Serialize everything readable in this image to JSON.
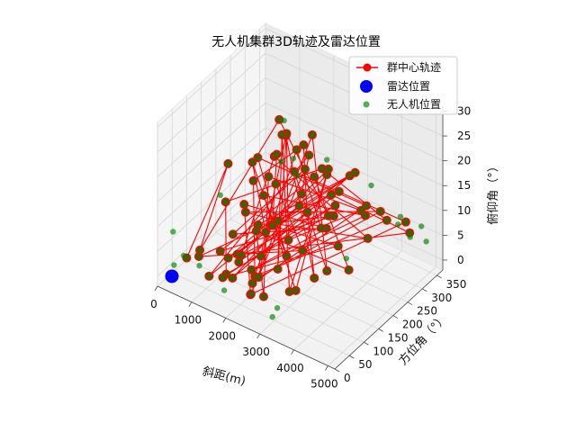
{
  "chart_data": {
    "type": "scatter",
    "projection": "3d",
    "title": "无人机集群3D轨迹及雷达位置",
    "xlabel": "斜距(m)",
    "ylabel": "方位角（°）",
    "zlabel": "俯仰角（°）",
    "xlim": [
      0,
      5200
    ],
    "ylim": [
      0,
      370
    ],
    "zlim": [
      -2,
      31
    ],
    "xticks": [
      "0",
      "1000",
      "2000",
      "3000",
      "4000",
      "5000"
    ],
    "yticks": [
      "0",
      "50",
      "100",
      "150",
      "200",
      "250",
      "300",
      "350"
    ],
    "zticks": [
      "0",
      "5",
      "10",
      "15",
      "20",
      "25",
      "30"
    ],
    "grid": true,
    "legend_position": "top-right",
    "legend": [
      {
        "label": "群中心轨迹",
        "color": "#ff0000",
        "marker": "line-circle"
      },
      {
        "label": "雷达位置",
        "color": "#0000ff",
        "marker": "circle"
      },
      {
        "label": "无人机位置",
        "color": "#008000",
        "marker": "circle"
      }
    ],
    "series": [
      {
        "name": "群中心轨迹",
        "color": "#ff0000",
        "points": [
          [
            600,
            30,
            4
          ],
          [
            1300,
            90,
            22
          ],
          [
            900,
            40,
            6
          ],
          [
            2200,
            160,
            30
          ],
          [
            3300,
            200,
            12
          ],
          [
            1500,
            60,
            2
          ],
          [
            800,
            140,
            10
          ],
          [
            2600,
            260,
            16
          ],
          [
            3900,
            330,
            6
          ],
          [
            2000,
            100,
            1
          ],
          [
            1100,
            200,
            12
          ],
          [
            3000,
            150,
            28
          ],
          [
            2500,
            220,
            9
          ],
          [
            1700,
            80,
            4
          ],
          [
            1200,
            260,
            14
          ],
          [
            3600,
            300,
            3
          ],
          [
            2300,
            130,
            11
          ],
          [
            1000,
            60,
            0
          ],
          [
            2900,
            180,
            24
          ],
          [
            2100,
            240,
            8
          ],
          [
            1400,
            110,
            3
          ],
          [
            4400,
            350,
            4
          ],
          [
            2700,
            280,
            10
          ],
          [
            1800,
            160,
            6
          ],
          [
            900,
            220,
            14
          ],
          [
            3200,
            100,
            2
          ],
          [
            2400,
            300,
            12
          ],
          [
            1600,
            70,
            1
          ],
          [
            3500,
            250,
            18
          ],
          [
            1900,
            190,
            7
          ],
          [
            1300,
            150,
            9
          ],
          [
            3800,
            320,
            8
          ],
          [
            2200,
            90,
            2
          ],
          [
            1500,
            230,
            11
          ],
          [
            2800,
            170,
            5
          ],
          [
            700,
            60,
            3
          ],
          [
            3100,
            260,
            13
          ],
          [
            2000,
            120,
            4
          ],
          [
            1200,
            300,
            16
          ],
          [
            3400,
            140,
            3
          ],
          [
            2600,
            210,
            10
          ],
          [
            1700,
            270,
            12
          ],
          [
            4200,
            360,
            5
          ],
          [
            2300,
            50,
            1
          ],
          [
            1000,
            180,
            8
          ],
          [
            2900,
            240,
            6
          ],
          [
            1900,
            100,
            2
          ],
          [
            3700,
            280,
            9
          ],
          [
            1400,
            200,
            10
          ],
          [
            2500,
            150,
            4
          ],
          [
            800,
            250,
            13
          ],
          [
            3300,
            330,
            7
          ],
          [
            2100,
            80,
            1
          ],
          [
            1600,
            290,
            15
          ],
          [
            3000,
            210,
            8
          ],
          [
            1100,
            130,
            5
          ],
          [
            2700,
            190,
            20
          ],
          [
            2400,
            40,
            2
          ],
          [
            1800,
            320,
            17
          ],
          [
            3600,
            160,
            4
          ],
          [
            2000,
            260,
            9
          ],
          [
            1300,
            90,
            3
          ],
          [
            2800,
            350,
            11
          ],
          [
            1500,
            170,
            6
          ],
          [
            3200,
            230,
            10
          ],
          [
            900,
            110,
            2
          ],
          [
            2200,
            280,
            12
          ],
          [
            3900,
            200,
            3
          ],
          [
            1700,
            140,
            7
          ],
          [
            2600,
            60,
            1
          ],
          [
            1200,
            240,
            11
          ],
          [
            3400,
            300,
            8
          ],
          [
            2300,
            180,
            5
          ],
          [
            1900,
            220,
            23
          ],
          [
            2500,
            120,
            3
          ],
          [
            1000,
            310,
            15
          ],
          [
            3100,
            90,
            2
          ],
          [
            2100,
            340,
            10
          ],
          [
            1600,
            100,
            4
          ],
          [
            2900,
            270,
            9
          ],
          [
            1400,
            60,
            1
          ],
          [
            3500,
            210,
            6
          ],
          [
            2000,
            160,
            8
          ],
          [
            1100,
            280,
            13
          ]
        ]
      },
      {
        "name": "雷达位置",
        "color": "#0000ff",
        "points": [
          [
            0,
            0,
            0
          ]
        ]
      },
      {
        "name": "无人机位置",
        "color": "#008000",
        "points": [
          [
            4500,
            340,
            4
          ],
          [
            4800,
            360,
            3
          ],
          [
            3300,
            80,
            30
          ],
          [
            2600,
            120,
            25
          ],
          [
            4700,
            355,
            6
          ],
          [
            600,
            20,
            5
          ],
          [
            200,
            30,
            8
          ],
          [
            400,
            10,
            3
          ],
          [
            3200,
            20,
            1
          ],
          [
            2000,
            200,
            27
          ],
          [
            3700,
            300,
            14
          ],
          [
            4100,
            345,
            5
          ],
          [
            1500,
            40,
            19
          ],
          [
            2900,
            140,
            22
          ],
          [
            3400,
            250,
            1
          ],
          [
            800,
            50,
            2
          ],
          [
            1700,
            30,
            1
          ],
          [
            2400,
            300,
            15
          ],
          [
            4300,
            330,
            8
          ],
          [
            3000,
            60,
            0
          ]
        ]
      }
    ]
  }
}
